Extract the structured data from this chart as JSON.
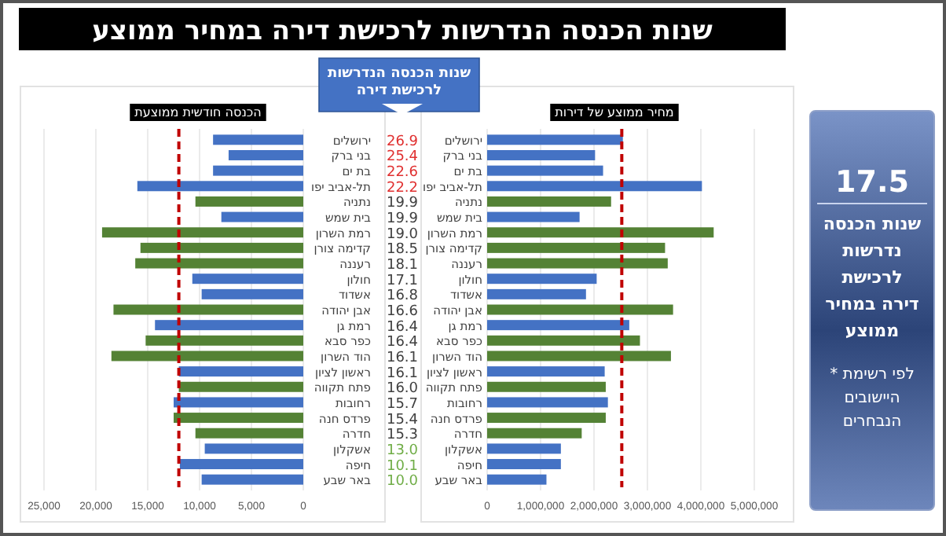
{
  "chart_data": [
    {
      "type": "other",
      "title": "שנות הכנסה הנדרשות לרכישת דירה במחיר ממוצע",
      "annotations": [
        "17.5",
        "שנות הכנסה נדרשות לרכישת דירה במחיר ממוצע",
        "* לפי רשימת היישובים הנבחרים"
      ]
    },
    {
      "type": "bar",
      "orientation": "horizontal",
      "title": "מחיר ממוצע של דירות",
      "categories": [
        "ירושלים",
        "בני ברק",
        "בת ים",
        "תל-אביב יפו",
        "נתניה",
        "בית שמש",
        "רמת השרון",
        "קדימה צורן",
        "רעננה",
        "חולון",
        "אשדוד",
        "אבן יהודה",
        "רמת גן",
        "כפר סבא",
        "הוד השרון",
        "ראשון לציון",
        "פתח תקווה",
        "רחובות",
        "פרדס חנה",
        "חדרה",
        "אשקלון",
        "חיפה",
        "באר שבע"
      ],
      "values": [
        2540000,
        2020000,
        2170000,
        4020000,
        2320000,
        1730000,
        4240000,
        3330000,
        3380000,
        2050000,
        1850000,
        3480000,
        2660000,
        2860000,
        3440000,
        2200000,
        2220000,
        2260000,
        2220000,
        1770000,
        1380000,
        1380000,
        1110000
      ],
      "colors": [
        "#4472c4",
        "#4472c4",
        "#4472c4",
        "#4472c4",
        "#548235",
        "#4472c4",
        "#548235",
        "#548235",
        "#548235",
        "#4472c4",
        "#4472c4",
        "#548235",
        "#4472c4",
        "#548235",
        "#548235",
        "#4472c4",
        "#548235",
        "#4472c4",
        "#548235",
        "#548235",
        "#4472c4",
        "#4472c4",
        "#4472c4"
      ],
      "xlim": [
        0,
        5000000
      ],
      "xticks": [
        0,
        {
          "value": 1000000,
          "label": "1,000,000"
        },
        {
          "value": 2000000,
          "label": "2,000,000"
        },
        {
          "value": 3000000,
          "label": "3,000,000"
        },
        {
          "value": 4000000,
          "label": "4,000,000"
        },
        {
          "value": 5000000,
          "label": "5,000,000"
        }
      ],
      "grid": "x",
      "ref_lines": [
        {
          "axis": "x",
          "value": 2520000,
          "color": "#c00000",
          "line_style": "dashed"
        }
      ]
    },
    {
      "type": "other",
      "title": "שנות הכנסה הנדרשות לרכישת דירה",
      "values": [
        26.9,
        25.4,
        22.6,
        22.2,
        19.9,
        19.9,
        19.0,
        18.5,
        18.1,
        17.1,
        16.8,
        16.6,
        16.4,
        16.4,
        16.1,
        16.1,
        16.0,
        15.7,
        15.4,
        15.3,
        13.0,
        10.1,
        10.0
      ],
      "value_labels": [
        "26.9",
        "25.4",
        "22.6",
        "22.2",
        "19.9",
        "19.9",
        "19.0",
        "18.5",
        "18.1",
        "17.1",
        "16.8",
        "16.6",
        "16.4",
        "16.4",
        "16.1",
        "16.1",
        "16.0",
        "15.7",
        "15.4",
        "15.3",
        "13.0",
        "10.1",
        "10.0"
      ],
      "colors": [
        "#e03030",
        "#e03030",
        "#e03030",
        "#e03030",
        "#404040",
        "#404040",
        "#404040",
        "#404040",
        "#404040",
        "#404040",
        "#404040",
        "#404040",
        "#404040",
        "#404040",
        "#404040",
        "#404040",
        "#404040",
        "#404040",
        "#404040",
        "#404040",
        "#70ad47",
        "#70ad47",
        "#70ad47"
      ]
    },
    {
      "type": "bar",
      "orientation": "horizontal",
      "title": "הכנסה חודשית ממוצעת",
      "categories": [
        "ירושלים",
        "בני ברק",
        "בת ים",
        "תל-אביב יפו",
        "נתניה",
        "בית שמש",
        "רמת השרון",
        "קדימה צורן",
        "רעננה",
        "חולון",
        "אשדוד",
        "אבן יהודה",
        "רמת גן",
        "כפר סבא",
        "הוד השרון",
        "ראשון לציון",
        "פתח תקווה",
        "רחובות",
        "פרדס חנה",
        "חדרה",
        "אשקלון",
        "חיפה",
        "באר שבע"
      ],
      "values": [
        8700,
        7200,
        8700,
        16000,
        10400,
        7900,
        19400,
        15700,
        16200,
        10700,
        9800,
        18300,
        14300,
        15200,
        18500,
        12000,
        12000,
        12500,
        12500,
        10400,
        9500,
        11900,
        9800
      ],
      "colors": [
        "#4472c4",
        "#4472c4",
        "#4472c4",
        "#4472c4",
        "#548235",
        "#4472c4",
        "#548235",
        "#548235",
        "#548235",
        "#4472c4",
        "#4472c4",
        "#548235",
        "#4472c4",
        "#548235",
        "#548235",
        "#4472c4",
        "#548235",
        "#4472c4",
        "#548235",
        "#548235",
        "#4472c4",
        "#4472c4",
        "#4472c4"
      ],
      "xlim": [
        25000,
        0
      ],
      "xticks": [
        {
          "value": 25000,
          "label": "25,000"
        },
        {
          "value": 20000,
          "label": "20,000"
        },
        {
          "value": 15000,
          "label": "15,000"
        },
        {
          "value": 10000,
          "label": "10,000"
        },
        {
          "value": 5000,
          "label": "5,000"
        },
        0
      ],
      "grid": "x",
      "ref_lines": [
        {
          "axis": "x",
          "value": 12000,
          "color": "#c00000",
          "line_style": "dashed"
        }
      ]
    }
  ]
}
